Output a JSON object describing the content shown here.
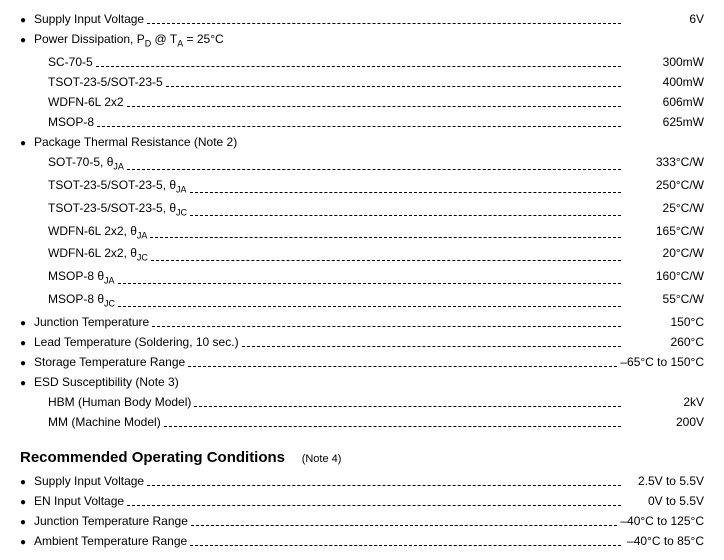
{
  "sections": {
    "abs_max": {
      "rows": [
        {
          "bullet": true,
          "label": "Supply Input Voltage",
          "value": "6V"
        },
        {
          "bullet": true,
          "label_html": "Power Dissipation, P<span class='sub'>D</span> @ T<span class='sub'>A</span> = 25°C",
          "value": ""
        },
        {
          "bullet": false,
          "indent": true,
          "label": "SC-70-5",
          "value": "300mW"
        },
        {
          "bullet": false,
          "indent": true,
          "label": "TSOT-23-5/SOT-23-5",
          "value": "400mW"
        },
        {
          "bullet": false,
          "indent": true,
          "label": "WDFN-6L 2x2",
          "value": "606mW"
        },
        {
          "bullet": false,
          "indent": true,
          "label": "MSOP-8",
          "value": "625mW"
        },
        {
          "bullet": true,
          "label": "Package Thermal Resistance   (Note 2)",
          "value": ""
        },
        {
          "bullet": false,
          "indent": true,
          "label_html": "SOT-70-5, θ<span class='sub'>JA</span>",
          "value": "333°C/W"
        },
        {
          "bullet": false,
          "indent": true,
          "label_html": "TSOT-23-5/SOT-23-5, θ<span class='sub'>JA</span>",
          "value": "250°C/W"
        },
        {
          "bullet": false,
          "indent": true,
          "label_html": "TSOT-23-5/SOT-23-5, θ<span class='sub'>JC</span>",
          "value": "25°C/W"
        },
        {
          "bullet": false,
          "indent": true,
          "label_html": "WDFN-6L 2x2, θ<span class='sub'>JA</span>",
          "value": "165°C/W"
        },
        {
          "bullet": false,
          "indent": true,
          "label_html": "WDFN-6L 2x2, θ<span class='sub'>JC</span>",
          "value": "20°C/W"
        },
        {
          "bullet": false,
          "indent": true,
          "label_html": "MSOP-8 θ<span class='sub'>JA</span>",
          "value": "160°C/W"
        },
        {
          "bullet": false,
          "indent": true,
          "label_html": "MSOP-8 θ<span class='sub'>JC</span>",
          "value": "55°C/W"
        },
        {
          "bullet": true,
          "label": "Junction Temperature",
          "value": "150°C"
        },
        {
          "bullet": true,
          "label": "Lead Temperature (Soldering, 10 sec.)",
          "value": "260°C"
        },
        {
          "bullet": true,
          "label": "Storage Temperature Range",
          "value": "–65°C to 150°C"
        },
        {
          "bullet": true,
          "label": "ESD Susceptibility   (Note 3)",
          "value": ""
        },
        {
          "bullet": false,
          "indent": true,
          "label": "HBM (Human Body Model)",
          "value": "2kV"
        },
        {
          "bullet": false,
          "indent": true,
          "label": "MM (Machine Model)",
          "value": "200V"
        }
      ]
    },
    "rec_op": {
      "title": "Recommended Operating Conditions",
      "note": "(Note 4)",
      "rows": [
        {
          "bullet": true,
          "label": "Supply Input Voltage",
          "value": "2.5V to 5.5V"
        },
        {
          "bullet": true,
          "label": "EN Input Voltage",
          "value": "0V to 5.5V"
        },
        {
          "bullet": true,
          "label": "Junction Temperature Range",
          "value": "–40°C to 125°C"
        },
        {
          "bullet": true,
          "label": "Ambient Temperature Range",
          "value": "–40°C to 85°C"
        }
      ]
    }
  }
}
